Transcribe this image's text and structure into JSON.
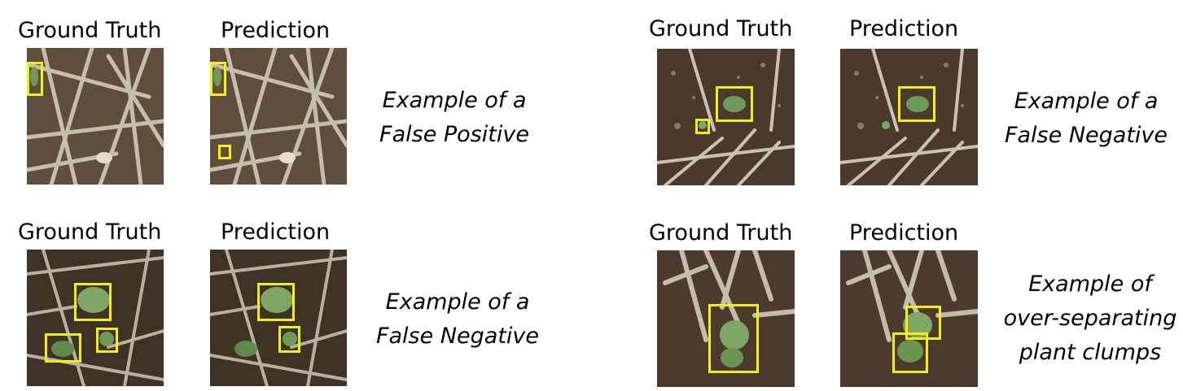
{
  "panels": [
    {
      "gt_label": "Ground Truth",
      "pred_label": "Prediction",
      "caption": [
        "Example of a",
        "False Positive"
      ],
      "scene": "straw-litter"
    },
    {
      "gt_label": "Ground Truth",
      "pred_label": "Prediction",
      "caption": [
        "Example of a",
        "False Negative"
      ],
      "scene": "seedling-on-soil"
    },
    {
      "gt_label": "Ground Truth",
      "pred_label": "Prediction",
      "caption": [
        "Example of a",
        "False Negative"
      ],
      "scene": "multiple-seedlings"
    },
    {
      "gt_label": "Ground Truth",
      "pred_label": "Prediction",
      "caption": [
        "Example of",
        "over-separating",
        "plant clumps"
      ],
      "scene": "seedling-clump"
    }
  ],
  "colors": {
    "box": "#f3ef10",
    "soil": "#6b5a44",
    "straw": "#cfc7b8",
    "leaf": "#6f9a5a"
  }
}
